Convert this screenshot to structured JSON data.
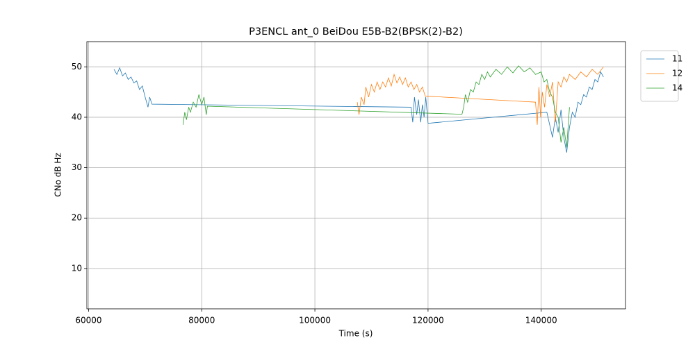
{
  "chart_data": {
    "type": "line",
    "title": "P3ENCL ant_0 BeiDou E5B-B2(BPSK(2)-B2)",
    "x_label": "Time (s)",
    "y_label": "CNo dB Hz",
    "xlim": [
      59700,
      154900
    ],
    "ylim": [
      2,
      55
    ],
    "xticks": [
      60000,
      80000,
      100000,
      120000,
      140000
    ],
    "yticks": [
      10,
      20,
      30,
      40,
      50
    ],
    "grid": true,
    "legend": "outside-right",
    "series": [
      {
        "name": "11",
        "color": "#1f77b4",
        "x": [
          64500,
          65000,
          65500,
          66000,
          66500,
          67000,
          67500,
          68000,
          68500,
          69000,
          69500,
          70000,
          70500,
          70800,
          71200,
          117000,
          117300,
          117600,
          118000,
          118300,
          118700,
          119000,
          119300,
          119600,
          120000,
          141000,
          142000,
          142500,
          143000,
          143500,
          144000,
          144500,
          145000,
          145500,
          146000,
          146500,
          147000,
          147500,
          148000,
          148500,
          149000,
          149500,
          150000,
          150500,
          151000
        ],
        "values": [
          49.5,
          48.5,
          49.8,
          48.2,
          48.8,
          47.5,
          48.0,
          46.8,
          47.2,
          45.5,
          46.2,
          44.0,
          42.0,
          44.0,
          42.6,
          42.0,
          39.0,
          44.0,
          40.5,
          43.5,
          39.0,
          42.5,
          40.0,
          44.0,
          38.8,
          41.0,
          36.0,
          40.0,
          37.0,
          41.5,
          36.0,
          33.0,
          38.0,
          41.0,
          40.0,
          43.0,
          42.5,
          44.5,
          44.0,
          46.0,
          45.5,
          47.5,
          47.0,
          49.0,
          48.0
        ]
      },
      {
        "name": "12",
        "color": "#ff7f0e",
        "x": [
          107500,
          107800,
          108200,
          108700,
          109000,
          109500,
          110000,
          110500,
          111000,
          111500,
          112000,
          112500,
          113000,
          113500,
          114000,
          114500,
          115000,
          115500,
          116000,
          116500,
          117000,
          117500,
          118000,
          118500,
          119000,
          119500,
          139000,
          139300,
          139600,
          139900,
          140200,
          140600,
          141000,
          141500,
          142000,
          142500,
          143000,
          143500,
          144000,
          144500,
          145000,
          146000,
          147000,
          148000,
          149000,
          150000,
          151000
        ],
        "values": [
          43,
          40.5,
          44,
          42.5,
          46,
          44,
          46.5,
          45,
          47,
          45.5,
          47,
          46,
          47.8,
          46.2,
          48.5,
          46.8,
          48,
          46.5,
          47.8,
          46,
          47,
          45.5,
          46.5,
          45,
          46,
          44.2,
          43,
          38.5,
          46,
          40,
          45,
          42,
          46.5,
          44,
          47,
          39,
          47,
          46,
          48,
          47,
          48.5,
          47.5,
          49,
          48,
          49.5,
          48.5,
          50
        ]
      },
      {
        "name": "14",
        "color": "#2ca02c",
        "x": [
          76700,
          77000,
          77300,
          77700,
          78000,
          78500,
          79000,
          79500,
          80000,
          80400,
          80800,
          81000,
          126000,
          126300,
          126600,
          127000,
          127500,
          128000,
          128500,
          129000,
          129500,
          130000,
          130500,
          131000,
          132000,
          133000,
          134000,
          135000,
          136000,
          137000,
          138000,
          139000,
          140000,
          140500,
          141000,
          141500,
          142000,
          142500,
          143000,
          143500,
          144000,
          144500,
          145000
        ],
        "values": [
          38.5,
          41,
          39.5,
          42,
          41,
          43,
          42,
          44.5,
          42.5,
          44,
          40.5,
          42.2,
          40.6,
          42,
          44.5,
          43,
          45.5,
          45,
          47,
          46.5,
          48.5,
          47.5,
          49,
          48,
          49.5,
          48.5,
          50,
          48.8,
          50.2,
          49,
          49.8,
          48.5,
          49,
          47,
          47.5,
          45,
          44,
          41,
          40,
          35,
          38,
          34,
          42
        ]
      }
    ]
  }
}
